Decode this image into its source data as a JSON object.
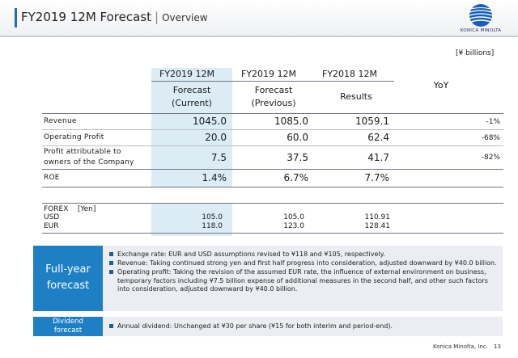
{
  "header": {
    "title": "FY2019 12M Forecast",
    "separator": "|",
    "subtitle": "Overview",
    "logo_text": "KONICA MINOLTA",
    "accent_color": "#1d6fb8"
  },
  "unit": "[¥ billions]",
  "table": {
    "columns": [
      {
        "line1": "FY2019 12M",
        "line2": "Forecast",
        "line3": "(Current)"
      },
      {
        "line1": "FY2019 12M",
        "line2": "Forecast",
        "line3": "(Previous)"
      },
      {
        "line1": "FY2018 12M",
        "line2": "Results",
        "line3": ""
      },
      {
        "line1": "",
        "line2": "YoY",
        "line3": ""
      }
    ],
    "rows": [
      {
        "label": "Revenue",
        "current": "1045.0",
        "previous": "1085.0",
        "results": "1059.1",
        "yoy": "-1%"
      },
      {
        "label": "Operating Profit",
        "current": "20.0",
        "previous": "60.0",
        "results": "62.4",
        "yoy": "-68%"
      },
      {
        "label_line1": "Profit attributable to",
        "label_line2": "owners of the Company",
        "current": "7.5",
        "previous": "37.5",
        "results": "41.7",
        "yoy": "-82%"
      },
      {
        "label": "ROE",
        "current": "1.4%",
        "previous": "6.7%",
        "results": "7.7%",
        "yoy": ""
      }
    ]
  },
  "forex": {
    "label": "FOREX",
    "unit": "[Yen]",
    "rows": [
      {
        "currency": "USD",
        "current": "105.0",
        "previous": "105.0",
        "results": "110.91"
      },
      {
        "currency": "EUR",
        "current": "118.0",
        "previous": "123.0",
        "results": "128.41"
      }
    ]
  },
  "full_year": {
    "badge_line1": "Full-year",
    "badge_line2": "forecast",
    "bullets": [
      "Exchange rate: EUR and USD assumptions revised to ¥118 and ¥105, respectively.",
      "Revenue: Taking continued strong yen and first half progress into consideration, adjusted downward by ¥40.0 billion.",
      "Operating profit: Taking the revision of the assumed EUR rate, the influence of external environment on business, temporary factors including ¥7.5 billion expense of additional measures in the second half, and other such factors into consideration, adjusted downward by ¥40.0 billion."
    ]
  },
  "dividend": {
    "badge_line1": "Dividend",
    "badge_line2": "forecast",
    "bullets": [
      "Annual dividend: Unchanged at ¥30 per share (¥15 for both interim and period-end)."
    ]
  },
  "footer": {
    "company": "Konica Minolta, Inc.",
    "page": "13"
  }
}
